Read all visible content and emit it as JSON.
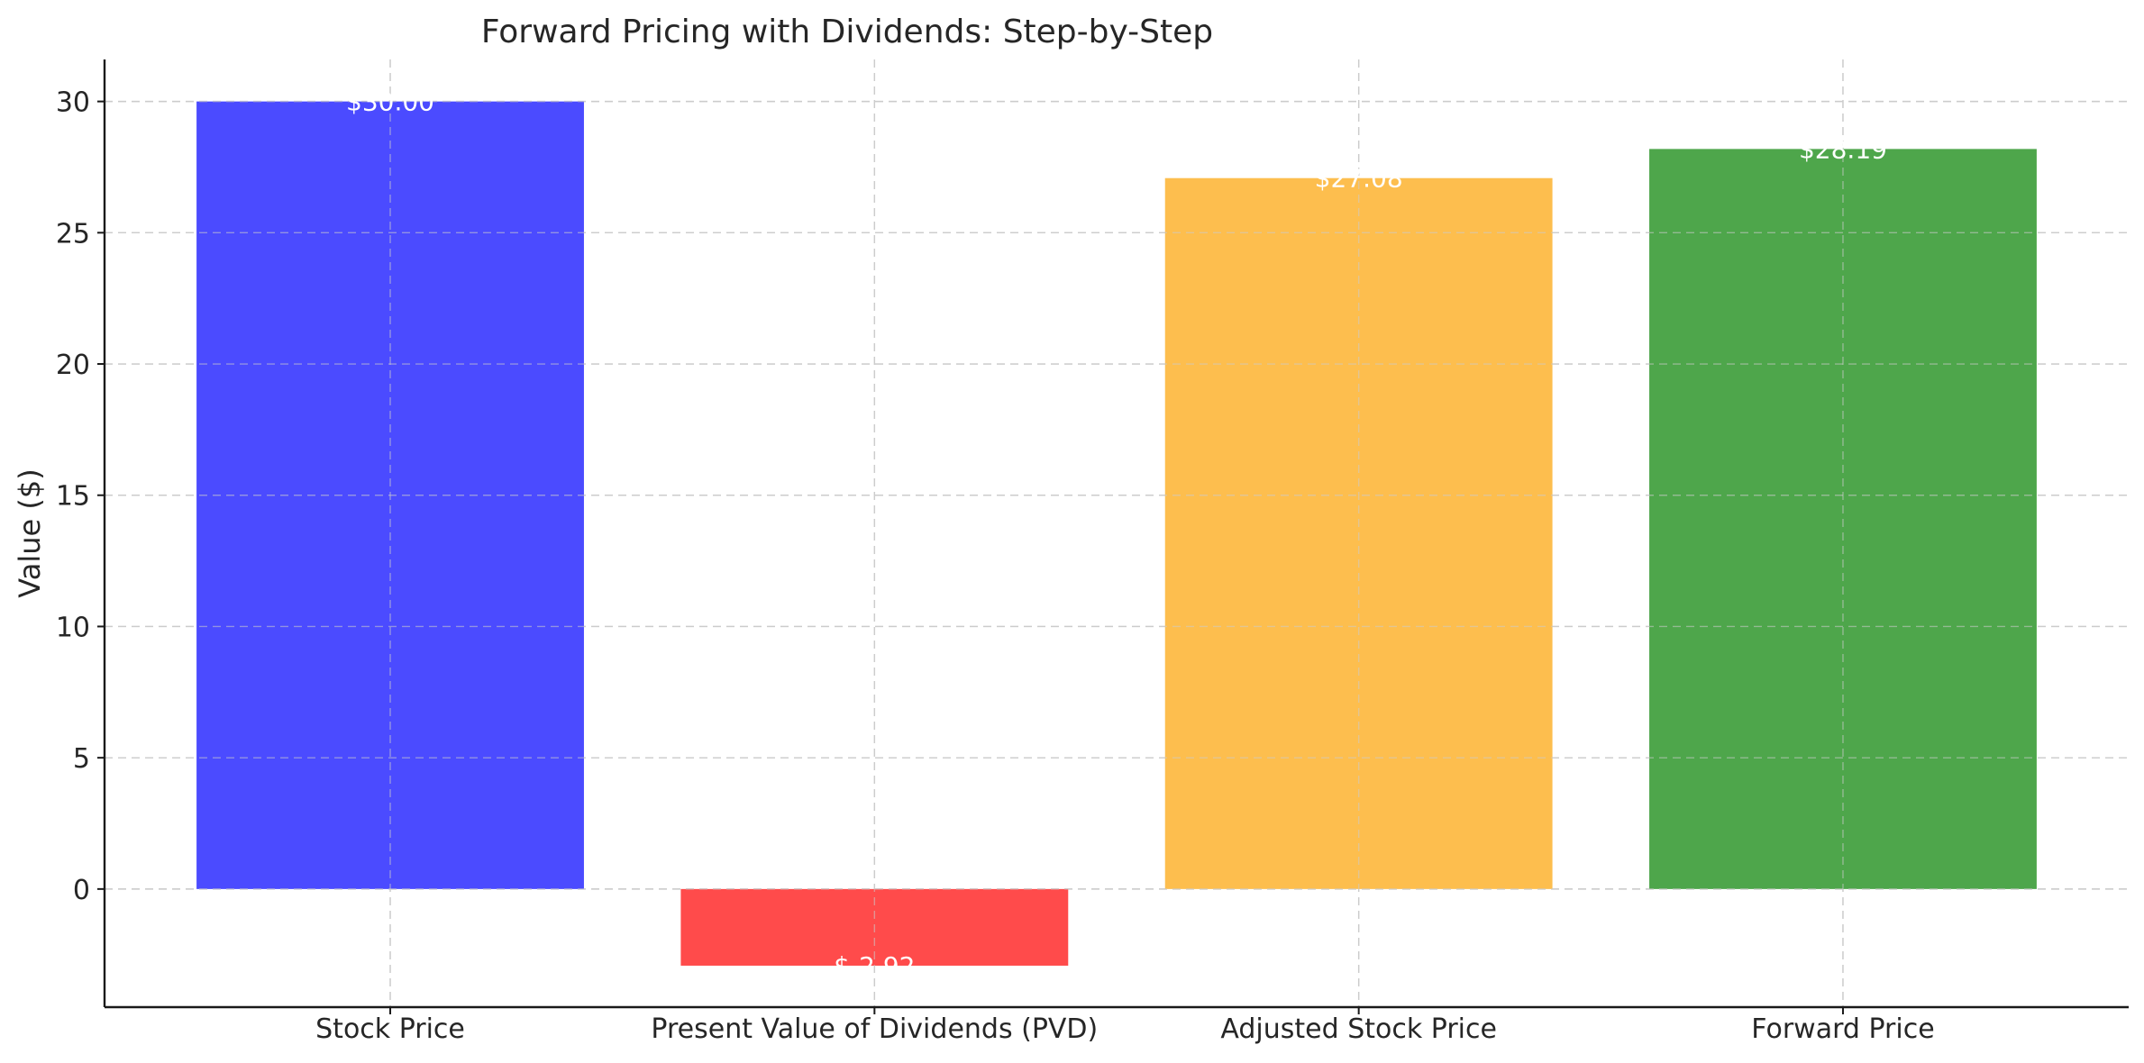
{
  "chart_data": {
    "type": "bar",
    "title": "Forward Pricing with Dividends: Step-by-Step",
    "xlabel": "",
    "ylabel": "Value ($)",
    "categories": [
      "Stock Price",
      "Present Value of Dividends (PVD)",
      "Adjusted Stock Price",
      "Forward Price"
    ],
    "values": [
      30.0,
      -2.92,
      27.08,
      28.19
    ],
    "value_labels": [
      "$30.00",
      "$-2.92",
      "$27.08",
      "$28.19"
    ],
    "colors": [
      "#4b4bff",
      "#ff4b4b",
      "#fdbe4e",
      "#4ea64b"
    ],
    "ylim": [
      -4.5,
      31.6
    ],
    "yticks": [
      0,
      5,
      10,
      15,
      20,
      25,
      30
    ],
    "grid": true
  }
}
